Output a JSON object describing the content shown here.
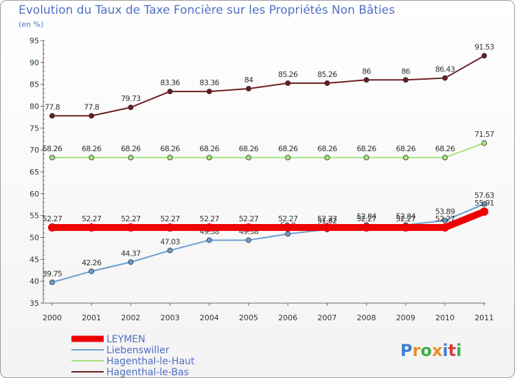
{
  "chart_data": {
    "type": "line",
    "title": "Evolution du Taux de Taxe Foncière sur les Propriétés Non Bâties",
    "ylabel": "(en %)",
    "xlabel": "",
    "ylim": [
      35,
      95
    ],
    "yticks": [
      35,
      40,
      45,
      50,
      55,
      60,
      65,
      70,
      75,
      80,
      85,
      90,
      95
    ],
    "categories": [
      "2000",
      "2001",
      "2002",
      "2003",
      "2004",
      "2005",
      "2006",
      "2007",
      "2008",
      "2009",
      "2010",
      "2011"
    ],
    "series": [
      {
        "name": "Hagenthal-le-Bas",
        "color": "#6b1c22",
        "values": [
          77.8,
          77.8,
          79.73,
          83.36,
          83.36,
          84,
          85.26,
          85.26,
          86,
          86,
          86.43,
          91.53
        ],
        "labels": [
          "77.8",
          "77.8",
          "79.73",
          "83.36",
          "83.36",
          "84",
          "85.26",
          "85.26",
          "86",
          "86",
          "86.43",
          "91.53"
        ]
      },
      {
        "name": "Hagenthal-le-Haut",
        "color": "#a5e37d",
        "values": [
          68.26,
          68.26,
          68.26,
          68.26,
          68.26,
          68.26,
          68.26,
          68.26,
          68.26,
          68.26,
          68.26,
          71.57
        ],
        "labels": [
          "68.26",
          "68.26",
          "68.26",
          "68.26",
          "68.26",
          "68.26",
          "68.26",
          "68.26",
          "68.26",
          "68.26",
          "68.26",
          "71.57"
        ]
      },
      {
        "name": "Liebenswiller",
        "color": "#6a9ed0",
        "values": [
          39.75,
          42.26,
          44.37,
          47.03,
          49.38,
          49.38,
          50.8,
          51.82,
          52.84,
          52.84,
          53.89,
          57.63
        ],
        "labels": [
          "39.75",
          "42.26",
          "44.37",
          "47.03",
          "49.38",
          "49.38",
          "50.8",
          "51.82",
          "52.84",
          "52.84",
          "53.89",
          "57.63"
        ]
      },
      {
        "name": "LEYMEN",
        "color": "#ee0000",
        "values": [
          52.27,
          52.27,
          52.27,
          52.27,
          52.27,
          52.27,
          52.27,
          52.27,
          52.27,
          52.27,
          52.27,
          55.91
        ],
        "labels": [
          "52.27",
          "52.27",
          "52.27",
          "52.27",
          "52.27",
          "52.27",
          "52.27",
          "52.27",
          "52.27",
          "52.27",
          "52.27",
          "55.91"
        ]
      }
    ],
    "legend": [
      "LEYMEN",
      "Liebenswiller",
      "Hagenthal-le-Haut",
      "Hagenthal-le-Bas"
    ],
    "legend_position": "bottom-left",
    "grid": false
  },
  "logo": {
    "text": "Proxiti"
  }
}
